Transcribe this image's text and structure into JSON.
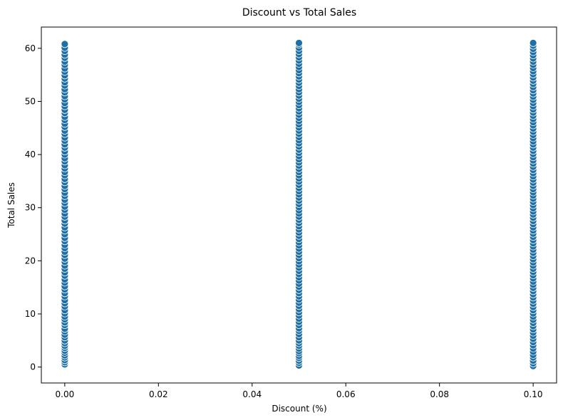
{
  "chart_data": {
    "type": "scatter",
    "title": "Discount vs Total Sales",
    "xlabel": "Discount (%)",
    "ylabel": "Total Sales",
    "xlim": [
      -0.005,
      0.105
    ],
    "ylim": [
      -3,
      64
    ],
    "x_ticks": [
      0.0,
      0.02,
      0.04,
      0.06,
      0.08,
      0.1
    ],
    "x_tick_labels": [
      "0.00",
      "0.02",
      "0.04",
      "0.06",
      "0.08",
      "0.10"
    ],
    "y_ticks": [
      0,
      10,
      20,
      30,
      40,
      50,
      60
    ],
    "y_tick_labels": [
      "0",
      "10",
      "20",
      "30",
      "40",
      "50",
      "60"
    ],
    "grid": false,
    "marker_color": "#1f6fa6",
    "marker_edge_color": "#ffffff",
    "series": [
      {
        "x": 0.0,
        "values": [
          0.5,
          0.9,
          1.3,
          1.8,
          2.2,
          2.7,
          3.1,
          3.6,
          4.0,
          4.5,
          5.0,
          5.6,
          6.1,
          6.7,
          7.2,
          7.9,
          8.4,
          9.0,
          9.5,
          10.1,
          10.7,
          11.4,
          12.0,
          12.6,
          13.3,
          13.9,
          14.6,
          15.2,
          15.9,
          16.5,
          17.2,
          17.8,
          18.5,
          19.1,
          19.8,
          20.4,
          21.1,
          21.7,
          22.4,
          23.0,
          23.7,
          24.3,
          25.0,
          25.7,
          26.3,
          27.0,
          27.6,
          28.3,
          28.9,
          29.6,
          30.2,
          30.9,
          31.5,
          32.2,
          32.8,
          33.5,
          34.1,
          34.8,
          35.4,
          36.1,
          36.7,
          37.4,
          38.0,
          38.7,
          39.3,
          40.0,
          40.6,
          41.3,
          41.9,
          42.6,
          43.2,
          43.9,
          44.5,
          45.2,
          45.8,
          46.5,
          47.1,
          47.8,
          48.4,
          49.1,
          49.7,
          50.4,
          51.0,
          51.7,
          52.3,
          53.0,
          53.6,
          54.3,
          54.9,
          55.6,
          56.2,
          56.9,
          57.5,
          58.2,
          58.8,
          59.5,
          60.1,
          60.8
        ]
      },
      {
        "x": 0.05,
        "values": [
          0.3,
          0.8,
          1.2,
          1.7,
          2.1,
          2.6,
          3.0,
          3.5,
          4.0,
          4.5,
          5.0,
          5.6,
          6.2,
          6.8,
          7.3,
          7.9,
          8.5,
          9.1,
          9.7,
          10.3,
          10.9,
          11.5,
          12.1,
          12.7,
          13.3,
          13.9,
          14.5,
          15.1,
          15.7,
          16.3,
          16.9,
          17.5,
          18.1,
          18.7,
          19.3,
          19.9,
          20.5,
          21.1,
          21.7,
          22.3,
          22.9,
          23.5,
          24.1,
          24.7,
          25.3,
          25.9,
          26.5,
          27.1,
          27.7,
          28.3,
          28.9,
          29.5,
          30.1,
          30.7,
          31.3,
          31.9,
          32.5,
          33.1,
          33.7,
          34.3,
          34.9,
          35.5,
          36.1,
          36.7,
          37.3,
          37.9,
          38.5,
          39.1,
          39.7,
          40.3,
          40.9,
          41.5,
          42.1,
          42.7,
          43.3,
          43.9,
          44.5,
          45.1,
          45.7,
          46.3,
          46.9,
          47.5,
          48.1,
          48.7,
          49.3,
          49.9,
          50.5,
          51.1,
          51.7,
          52.3,
          52.9,
          53.5,
          54.1,
          54.7,
          55.3,
          55.9,
          56.5,
          57.1,
          57.7,
          58.3,
          58.9,
          59.5,
          60.1,
          60.7,
          61.0
        ]
      },
      {
        "x": 0.1,
        "values": [
          0.2,
          0.7,
          1.2,
          1.8,
          2.3,
          2.9,
          3.5,
          4.1,
          4.7,
          5.3,
          5.9,
          6.5,
          7.1,
          7.7,
          8.3,
          8.9,
          9.5,
          10.1,
          10.7,
          11.3,
          11.9,
          12.5,
          13.1,
          13.7,
          14.3,
          14.9,
          15.5,
          16.1,
          16.7,
          17.3,
          17.9,
          18.5,
          19.1,
          19.7,
          20.3,
          20.9,
          21.5,
          22.1,
          22.7,
          23.3,
          23.9,
          24.5,
          25.1,
          25.7,
          26.3,
          26.9,
          27.5,
          28.1,
          28.7,
          29.3,
          29.9,
          30.5,
          31.1,
          31.7,
          32.3,
          32.9,
          33.5,
          34.1,
          34.7,
          35.3,
          35.9,
          36.5,
          37.1,
          37.7,
          38.3,
          38.9,
          39.5,
          40.1,
          40.7,
          41.3,
          41.9,
          42.5,
          43.1,
          43.7,
          44.3,
          44.9,
          45.5,
          46.1,
          46.7,
          47.3,
          47.9,
          48.5,
          49.1,
          49.7,
          50.3,
          50.9,
          51.5,
          52.1,
          52.7,
          53.3,
          53.9,
          54.5,
          55.1,
          55.7,
          56.3,
          56.9,
          57.5,
          58.1,
          58.7,
          59.3,
          59.9,
          60.5,
          61.0
        ]
      }
    ]
  }
}
